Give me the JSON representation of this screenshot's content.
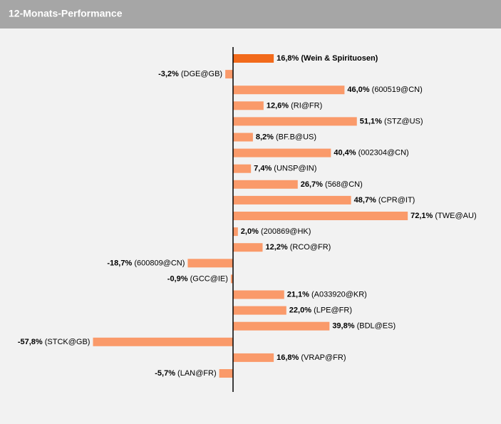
{
  "chart_data": {
    "type": "hbar",
    "title": "12-Monats-Performance",
    "categories": [
      "(Wein & Spirituosen)",
      "(DGE@GB)",
      "(600519@CN)",
      "(RI@FR)",
      "(STZ@US)",
      "(BF.B@US)",
      "(002304@CN)",
      "(UNSP@IN)",
      "(568@CN)",
      "(CPR@IT)",
      "(TWE@AU)",
      "(200869@HK)",
      "(RCO@FR)",
      "(600809@CN)",
      "(GCC@IE)",
      "(A033920@KR)",
      "(LPE@FR)",
      "(BDL@ES)",
      "(STCK@GB)",
      "(VRAP@FR)",
      "(LAN@FR)"
    ],
    "values": [
      16.8,
      -3.2,
      46.0,
      12.6,
      51.1,
      8.2,
      40.4,
      7.4,
      26.7,
      48.7,
      72.1,
      2.0,
      12.2,
      -18.7,
      -0.9,
      21.1,
      22.0,
      39.8,
      -57.8,
      16.8,
      -5.7
    ],
    "value_labels": [
      "16,8%",
      "-3,2%",
      "46,0%",
      "12,6%",
      "51,1%",
      "8,2%",
      "40,4%",
      "7,4%",
      "26,7%",
      "48,7%",
      "72,1%",
      "2,0%",
      "12,2%",
      "-18,7%",
      "-0,9%",
      "21,1%",
      "22,0%",
      "39,8%",
      "-57,8%",
      "16,8%",
      "-5,7%"
    ],
    "colors": [
      "#f26a1b",
      "#fa9a6a",
      "#fa9a6a",
      "#fa9a6a",
      "#fa9a6a",
      "#fa9a6a",
      "#fa9a6a",
      "#fa9a6a",
      "#fa9a6a",
      "#fa9a6a",
      "#fa9a6a",
      "#fa9a6a",
      "#fa9a6a",
      "#fa9a6a",
      "#fa9a6a",
      "#fa9a6a",
      "#fa9a6a",
      "#fa9a6a",
      "#fa9a6a",
      "#fa9a6a",
      "#fa9a6a"
    ]
  }
}
